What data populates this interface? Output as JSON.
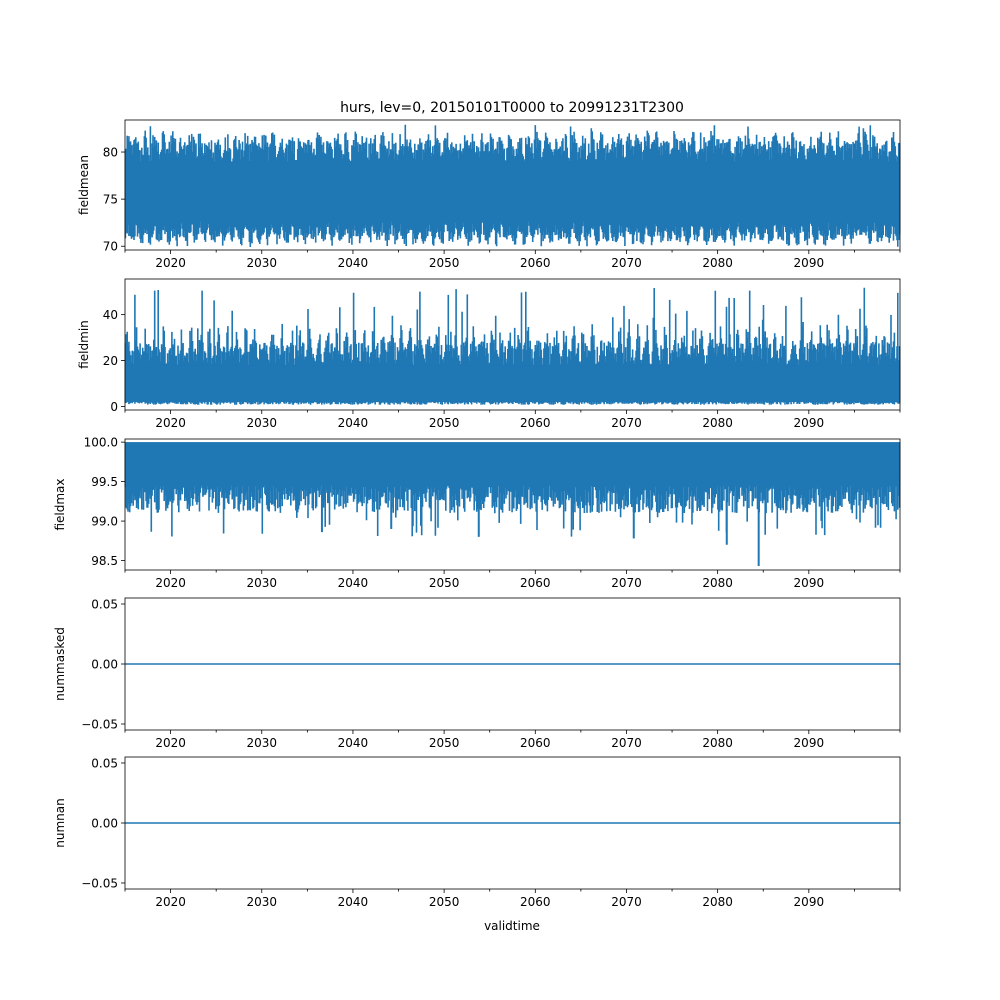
{
  "figure": {
    "title": "hurs, lev=0, 20150101T0000 to 20991231T2300",
    "xlabel": "validtime"
  },
  "colors": {
    "series": "#1f77b4",
    "axis": "#000000",
    "background": "#ffffff"
  },
  "chart_data": [
    {
      "type": "line",
      "ylabel": "fieldmean",
      "xlim": [
        2015,
        2100
      ],
      "ylim": [
        69.6,
        83.4
      ],
      "yticks": [
        70,
        75,
        80
      ],
      "ytick_labels": [
        "70",
        "75",
        "80"
      ],
      "xticks": [
        2020,
        2030,
        2040,
        2050,
        2060,
        2070,
        2080,
        2090
      ],
      "xtick_labels": [
        "2020",
        "2030",
        "2040",
        "2050",
        "2060",
        "2070",
        "2080",
        "2090"
      ],
      "series": [
        {
          "x_range": [
            2015.0,
            2100.0
          ],
          "low": 70.5,
          "high": 82.9,
          "center": 76.5,
          "description_values": [
            71,
            82
          ]
        }
      ]
    },
    {
      "type": "line",
      "ylabel": "fieldmin",
      "xlim": [
        2015,
        2100
      ],
      "ylim": [
        -1.5,
        55.5
      ],
      "yticks": [
        0,
        20,
        40
      ],
      "ytick_labels": [
        "0",
        "20",
        "40"
      ],
      "xticks": [
        2020,
        2030,
        2040,
        2050,
        2060,
        2070,
        2080,
        2090
      ],
      "xtick_labels": [
        "2020",
        "2030",
        "2040",
        "2050",
        "2060",
        "2070",
        "2080",
        "2090"
      ],
      "series": [
        {
          "x_range": [
            2015.0,
            2100.0
          ],
          "low": 0.5,
          "high": 53.5,
          "center": 12,
          "description_values": [
            1,
            53
          ]
        }
      ]
    },
    {
      "type": "line",
      "ylabel": "fieldmax",
      "xlim": [
        2015,
        2100
      ],
      "ylim": [
        98.38,
        100.04
      ],
      "yticks": [
        98.5,
        99.0,
        99.5,
        100.0
      ],
      "ytick_labels": [
        "98.5",
        "99.0",
        "99.5",
        "100.0"
      ],
      "xticks": [
        2020,
        2030,
        2040,
        2050,
        2060,
        2070,
        2080,
        2090
      ],
      "xtick_labels": [
        "2020",
        "2030",
        "2040",
        "2050",
        "2060",
        "2070",
        "2080",
        "2090"
      ],
      "series": [
        {
          "x_range": [
            2015.0,
            2100.0
          ],
          "low": 98.43,
          "high": 100.0,
          "center": 99.8,
          "description_values": [
            98.43,
            100.0
          ]
        }
      ]
    },
    {
      "type": "line",
      "ylabel": "nummasked",
      "xlim": [
        2015,
        2100
      ],
      "ylim": [
        -0.055,
        0.055
      ],
      "yticks": [
        -0.05,
        0.0,
        0.05
      ],
      "ytick_labels": [
        "−0.05",
        "0.00",
        "0.05"
      ],
      "xticks": [
        2020,
        2030,
        2040,
        2050,
        2060,
        2070,
        2080,
        2090
      ],
      "xtick_labels": [
        "2020",
        "2030",
        "2040",
        "2050",
        "2060",
        "2070",
        "2080",
        "2090"
      ],
      "series": [
        {
          "x": [
            2015,
            2100
          ],
          "y": [
            0,
            0
          ]
        }
      ]
    },
    {
      "type": "line",
      "ylabel": "numnan",
      "xlim": [
        2015,
        2100
      ],
      "ylim": [
        -0.055,
        0.055
      ],
      "yticks": [
        -0.05,
        0.0,
        0.05
      ],
      "ytick_labels": [
        "−0.05",
        "0.00",
        "0.05"
      ],
      "xticks": [
        2020,
        2030,
        2040,
        2050,
        2060,
        2070,
        2080,
        2090
      ],
      "xtick_labels": [
        "2020",
        "2030",
        "2040",
        "2050",
        "2060",
        "2070",
        "2080",
        "2090"
      ],
      "series": [
        {
          "x": [
            2015,
            2100
          ],
          "y": [
            0,
            0
          ]
        }
      ]
    }
  ]
}
